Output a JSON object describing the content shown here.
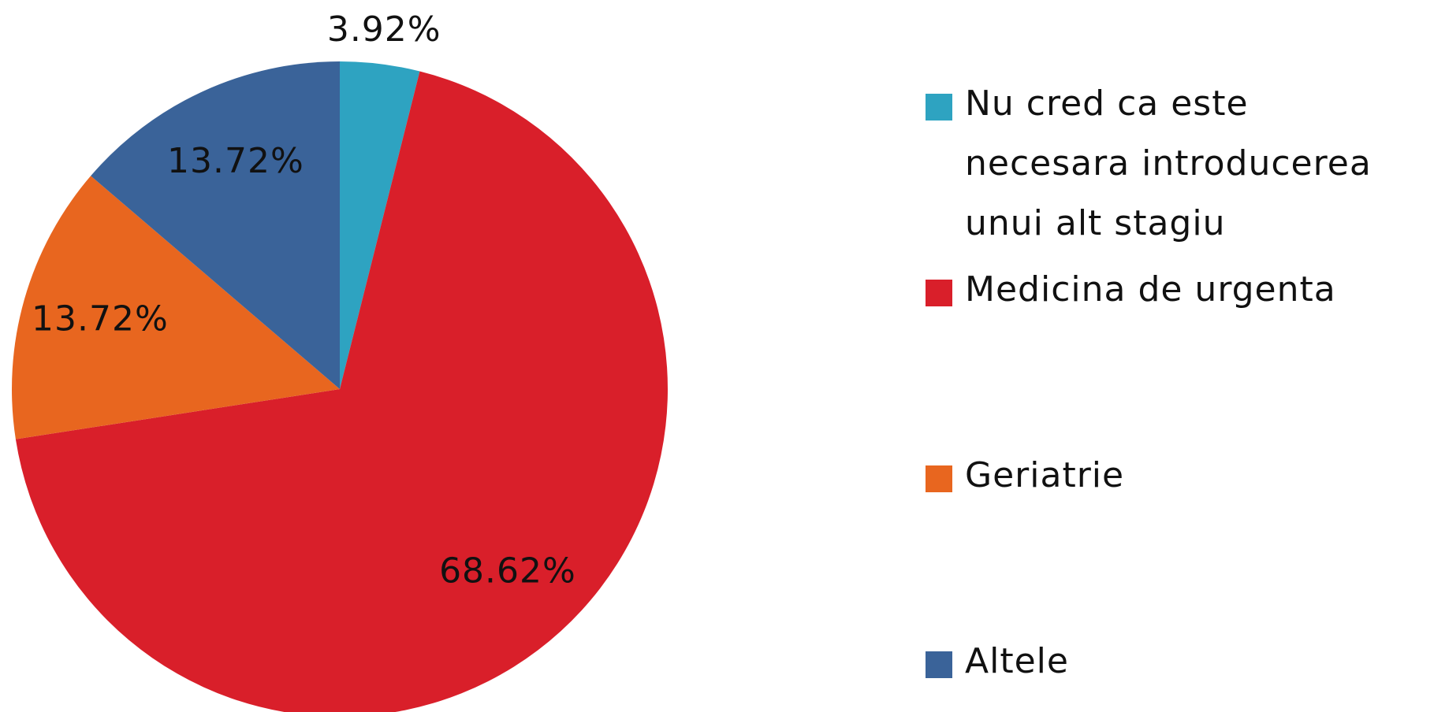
{
  "chart_data": {
    "type": "pie",
    "categories": [
      "Nu cred ca este necesara introducerea unui alt stagiu",
      "Medicina de urgenta",
      "Geriatrie",
      "Altele"
    ],
    "values": [
      3.92,
      68.62,
      13.72,
      13.72
    ],
    "value_labels": [
      "3.92%",
      "68.62%",
      "13.72%",
      "13.72%"
    ],
    "colors": [
      "#2ea3c1",
      "#d91f2a",
      "#e8661f",
      "#3a6399"
    ],
    "legend": "right"
  }
}
